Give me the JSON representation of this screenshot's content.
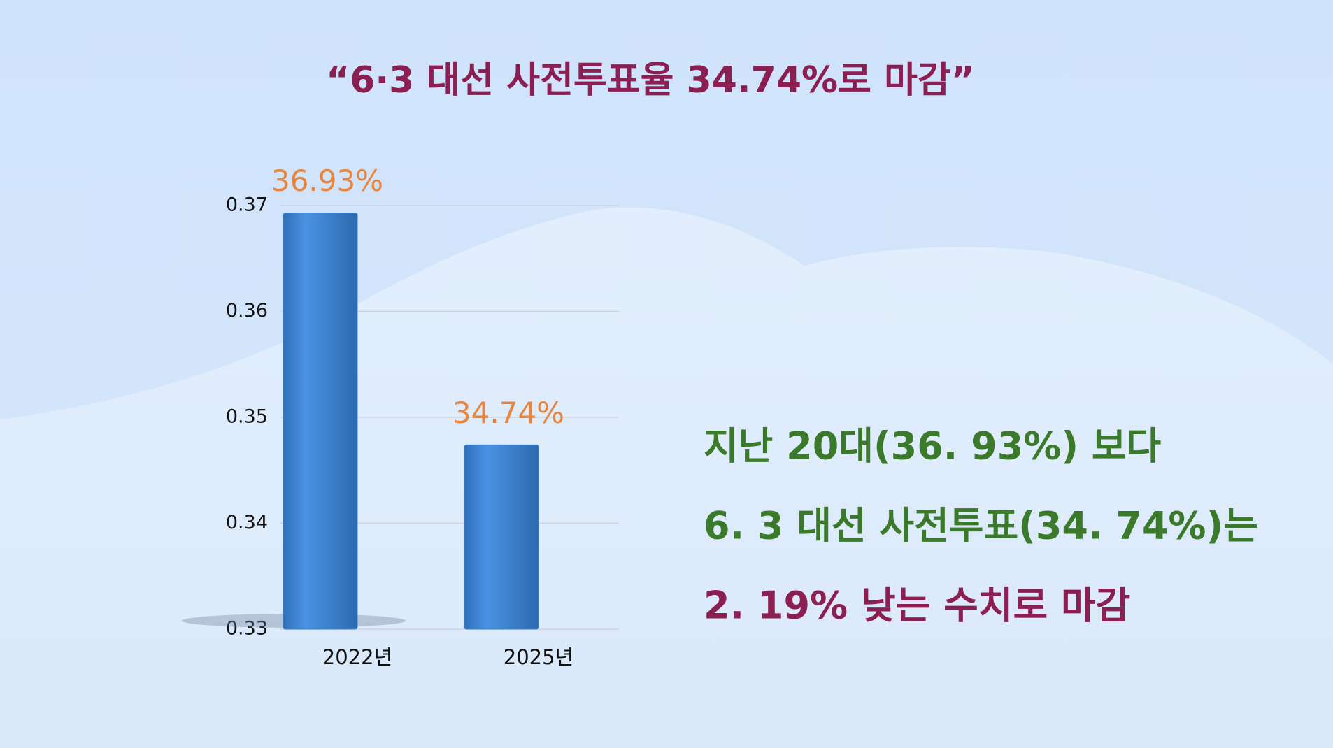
{
  "chart_data": {
    "type": "bar",
    "title": "“6·3 대선 사전투표율 34.74%로 마감”",
    "categories": [
      "2022년",
      "2025년"
    ],
    "values": [
      0.3693,
      0.3474
    ],
    "value_labels": [
      "36.93%",
      "34.74%"
    ],
    "color": "#3a82d2",
    "value_label_color": "#e8843c",
    "title_color": "#8b1f52",
    "ylim": [
      0.33,
      0.37
    ],
    "yticks": [
      0.33,
      0.34,
      0.35,
      0.36,
      0.37
    ],
    "grid": true,
    "annotations": [
      {
        "text": "지난 20대(36. 93%) 보다",
        "color": "#3b7a2a"
      },
      {
        "text": "6. 3 대선 사전투표(34. 74%)는",
        "color": "#3b7a2a"
      },
      {
        "text": "2. 19% 낮는 수치로 마감",
        "color": "#8b1f52"
      }
    ]
  }
}
